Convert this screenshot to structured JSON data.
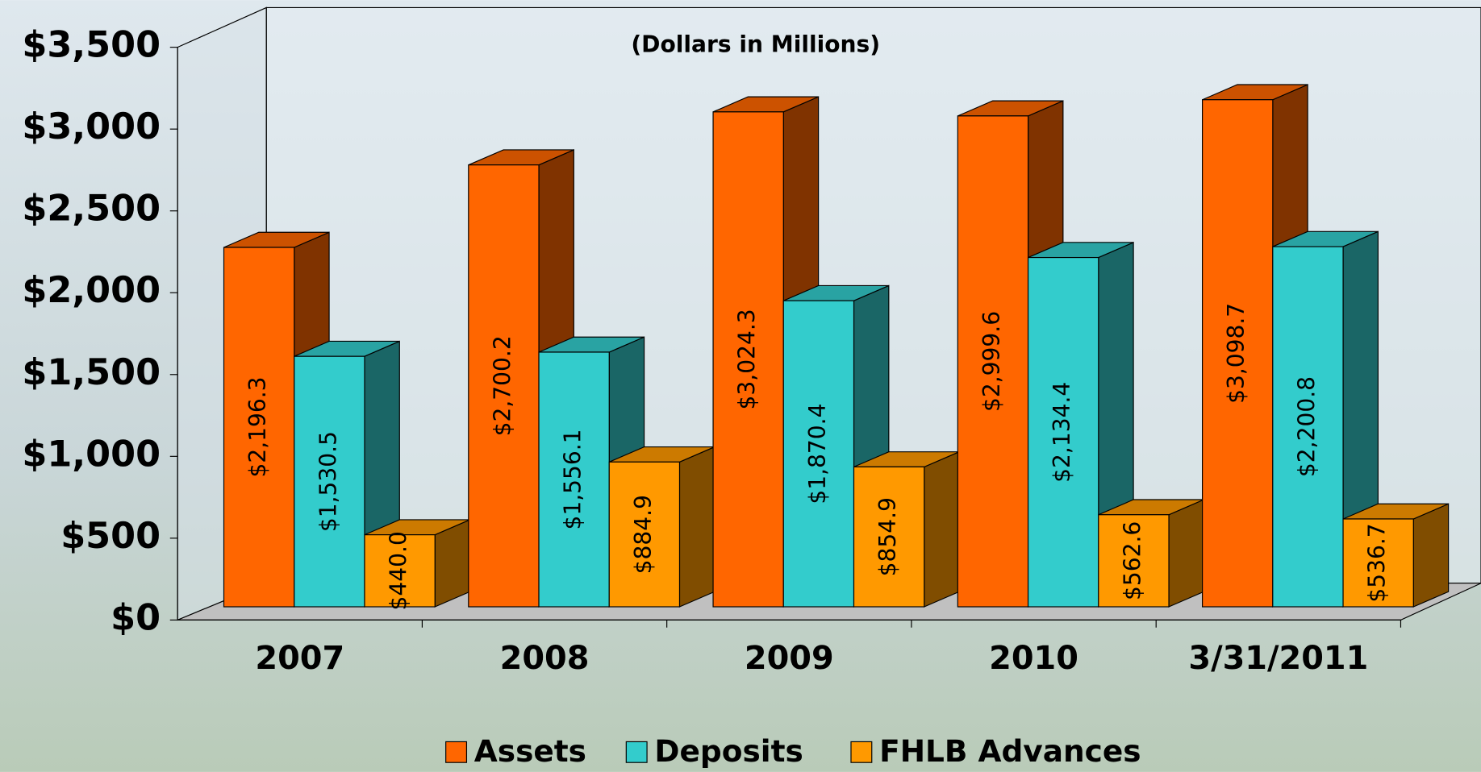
{
  "chart_data": {
    "type": "bar3d",
    "subtitle": "(Dollars in Millions)",
    "categories": [
      "2007",
      "2008",
      "2009",
      "2010",
      "3/31/2011"
    ],
    "series": [
      {
        "name": "Assets",
        "color": "#ff6600",
        "values": [
          2196.3,
          2700.2,
          3024.3,
          2999.6,
          3098.7
        ],
        "value_labels": [
          "$2,196.3",
          "$2,700.2",
          "$3,024.3",
          "$2,999.6",
          "$3,098.7"
        ]
      },
      {
        "name": "Deposits",
        "color": "#33cccc",
        "values": [
          1530.5,
          1556.1,
          1870.4,
          2134.4,
          2200.8
        ],
        "value_labels": [
          "$1,530.5",
          "$1,556.1",
          "$1,870.4",
          "$2,134.4",
          "$2,200.8"
        ]
      },
      {
        "name": "FHLB Advances",
        "color": "#ff9900",
        "values": [
          440.0,
          884.9,
          854.9,
          562.6,
          536.7
        ],
        "value_labels": [
          "$440.0",
          "$884.9",
          "$854.9",
          "$562.6",
          "$536.7"
        ]
      }
    ],
    "ylim": [
      0,
      3500
    ],
    "yticks": [
      {
        "value": 0,
        "label": "$0"
      },
      {
        "value": 500,
        "label": "$500"
      },
      {
        "value": 1000,
        "label": "$1,000"
      },
      {
        "value": 1500,
        "label": "$1,500"
      },
      {
        "value": 2000,
        "label": "$2,000"
      },
      {
        "value": 2500,
        "label": "$2,500"
      },
      {
        "value": 3000,
        "label": "$3,000"
      },
      {
        "value": 3500,
        "label": "$3,500"
      }
    ],
    "legend": "bottom"
  }
}
